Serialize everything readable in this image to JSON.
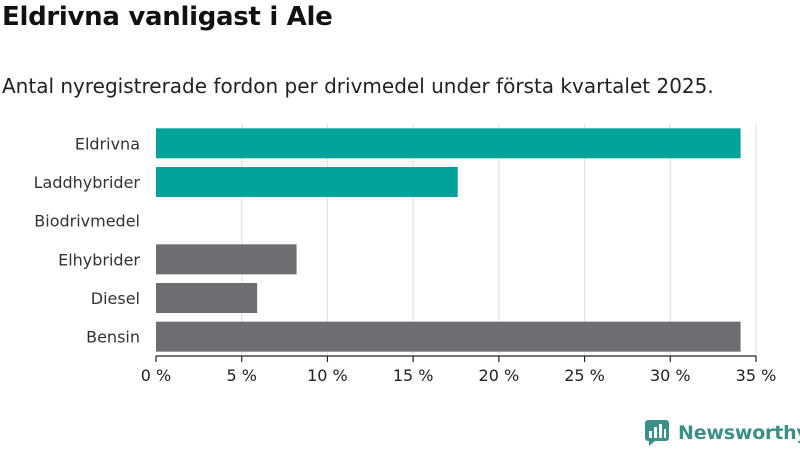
{
  "title": "Eldrivna vanligast i Ale",
  "subtitle": "Antal nyregistrerade fordon per drivmedel under första kvartalet 2025.",
  "brand": {
    "name": "Newsworthy",
    "color": "#3a8f86",
    "icon": "newsworthy-logo-icon"
  },
  "colors": {
    "highlight": "#00a29a",
    "default": "#6e6d72",
    "grid": "#e2e2e2",
    "axis": "#222222"
  },
  "chart_data": {
    "type": "bar",
    "orientation": "horizontal",
    "categories": [
      "Eldrivna",
      "Laddhybrider",
      "Biodrivmedel",
      "Elhybrider",
      "Diesel",
      "Bensin"
    ],
    "values": [
      34.1,
      17.6,
      0,
      8.2,
      5.9,
      34.1
    ],
    "highlight": [
      true,
      true,
      true,
      false,
      false,
      false
    ],
    "xlim": [
      0,
      35
    ],
    "xticks": [
      0,
      5,
      10,
      15,
      20,
      25,
      30,
      35
    ],
    "xtick_labels": [
      "0 %",
      "5 %",
      "10 %",
      "15 %",
      "20 %",
      "25 %",
      "30 %",
      "35 %"
    ],
    "grid": true,
    "xlabel": "",
    "ylabel": ""
  }
}
